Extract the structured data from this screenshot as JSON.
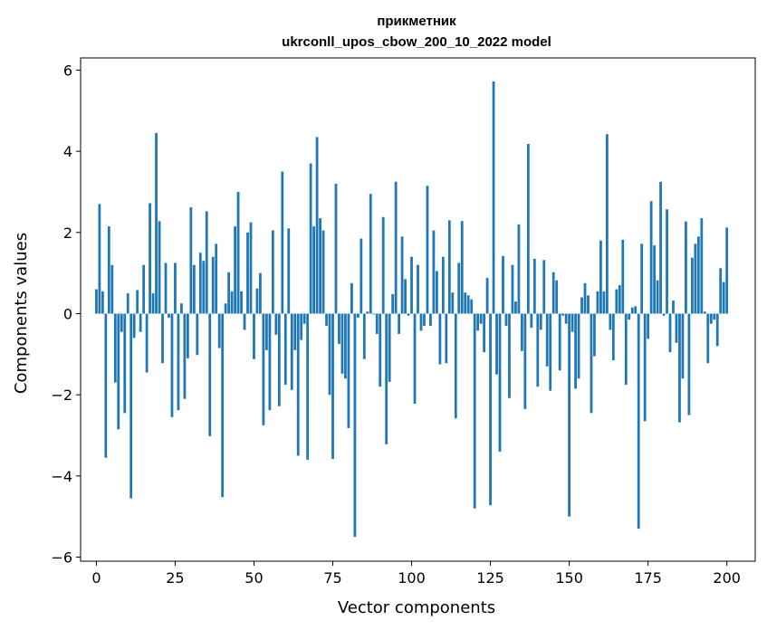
{
  "chart_data": {
    "type": "bar",
    "title": "прикметник",
    "subtitle": "ukrconll_upos_cbow_200_10_2022 model",
    "xlabel": "Vector components",
    "ylabel": "Components values",
    "xlim": [
      -5,
      209
    ],
    "ylim": [
      -6.1,
      6.3
    ],
    "xticks": [
      0,
      25,
      50,
      75,
      100,
      125,
      150,
      175,
      200
    ],
    "yticks": [
      -6,
      -4,
      -2,
      0,
      2,
      4,
      6
    ],
    "xtick_labels": [
      "0",
      "25",
      "50",
      "75",
      "100",
      "125",
      "150",
      "175",
      "200"
    ],
    "ytick_labels": [
      "−6",
      "−4",
      "−2",
      "0",
      "2",
      "4",
      "6"
    ],
    "grid": false,
    "bar_color": "#1f77b4",
    "series": [
      {
        "values": [
          0.6,
          2.7,
          0.55,
          -3.55,
          2.15,
          1.2,
          -1.7,
          -2.85,
          -0.45,
          -2.45,
          0.5,
          -4.55,
          -0.6,
          0.58,
          -0.45,
          1.2,
          -1.45,
          2.72,
          0.5,
          4.45,
          2.28,
          -1.22,
          1.25,
          -0.1,
          -2.55,
          1.25,
          -2.38,
          0.25,
          -2.1,
          -1.1,
          2.62,
          1.2,
          -1.02,
          1.5,
          1.3,
          2.52,
          -3.02,
          1.4,
          1.72,
          -0.85,
          -4.52,
          0.25,
          1.02,
          0.55,
          2.15,
          3.0,
          0.55,
          -0.4,
          2.0,
          2.25,
          -1.12,
          0.62,
          1.0,
          -2.75,
          -0.9,
          -2.38,
          2.05,
          -0.52,
          -2.28,
          3.5,
          -1.75,
          2.1,
          -1.88,
          -0.9,
          -3.5,
          -0.65,
          -0.25,
          -3.6,
          3.7,
          2.15,
          4.35,
          2.35,
          2.05,
          -0.3,
          -2.0,
          -3.58,
          3.2,
          -0.75,
          -1.48,
          -1.6,
          -2.82,
          0.75,
          -5.5,
          -0.1,
          1.85,
          -1.12,
          0.05,
          2.95,
          -0.02,
          -0.5,
          -1.8,
          2.38,
          -3.22,
          -1.68,
          0.48,
          3.25,
          -0.5,
          1.9,
          0.85,
          -0.05,
          1.4,
          -2.22,
          1.2,
          -0.42,
          -0.3,
          3.15,
          -0.3,
          2.05,
          1.05,
          -1.25,
          1.4,
          -1.22,
          2.3,
          0.52,
          -2.58,
          1.25,
          2.28,
          0.52,
          0.45,
          0.35,
          -4.8,
          -0.42,
          -0.25,
          -0.95,
          0.88,
          -4.72,
          5.72,
          -1.5,
          -3.4,
          1.42,
          -0.3,
          -2.08,
          1.2,
          0.3,
          2.2,
          -0.92,
          -2.35,
          4.18,
          -0.35,
          1.35,
          -1.8,
          -0.4,
          1.32,
          -1.3,
          -1.9,
          1.02,
          0.82,
          -1.4,
          -0.05,
          -0.25,
          -5.0,
          -0.45,
          -1.85,
          -1.6,
          0.4,
          0.75,
          0.45,
          -2.45,
          -1.05,
          0.55,
          1.8,
          0.55,
          4.42,
          -0.4,
          -1.15,
          0.6,
          0.7,
          1.82,
          -1.75,
          -0.15,
          0.15,
          0.18,
          -5.3,
          1.72,
          -2.65,
          -0.62,
          2.77,
          1.68,
          0.82,
          3.25,
          -0.05,
          2.57,
          -0.95,
          0.32,
          -0.72,
          -2.68,
          -1.6,
          2.27,
          -2.5,
          1.38,
          1.72,
          1.9,
          2.35,
          0.05,
          -1.22,
          -0.25,
          -0.15,
          -0.8,
          1.12,
          0.78,
          2.12
        ]
      }
    ]
  }
}
